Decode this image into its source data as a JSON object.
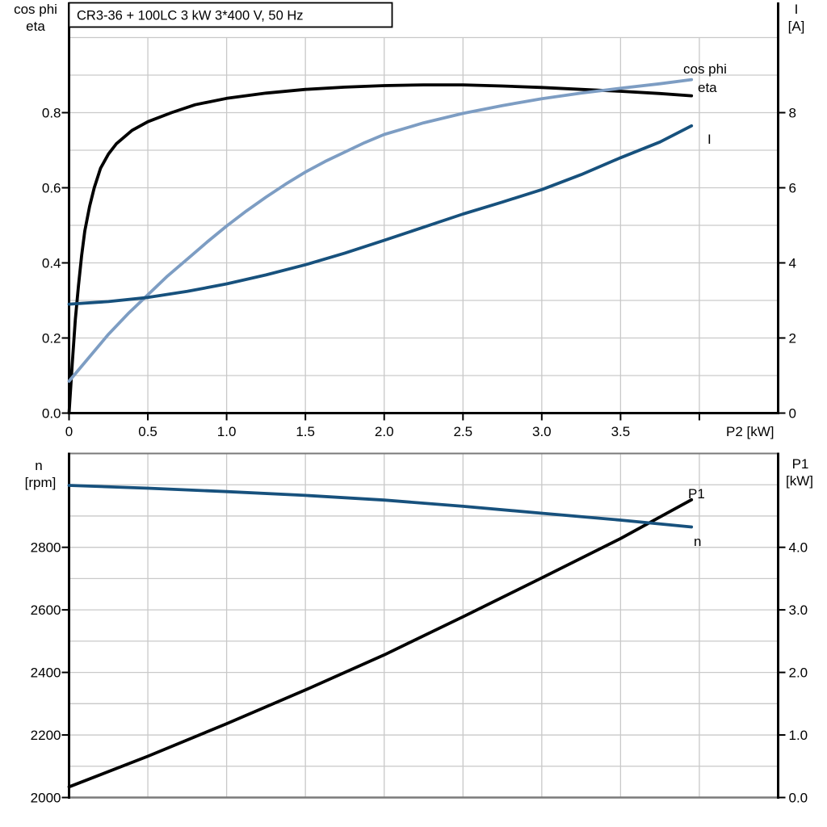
{
  "page": {
    "background": "#ffffff"
  },
  "colors": {
    "curve_black": "#000000",
    "curve_dark_blue": "#17517d",
    "curve_light_blue": "#7d9dc3",
    "gridline": "#c9c9c9",
    "plot_border_gray": "#7a7a7a",
    "axis_black": "#000000",
    "title_box_border": "#000000",
    "title_box_fill": "#ffffff"
  },
  "chart_data": [
    {
      "id": "motor-efficiency-chart",
      "type": "line",
      "title": "CR3-36 + 100LC   3 kW   3*400 V, 50 Hz",
      "x_axis": {
        "label": "P2 [kW]",
        "min": 0,
        "max": 4.5,
        "grid_step": 0.5,
        "tick_values": [
          0,
          0.5,
          1,
          1.5,
          2,
          2.5,
          3,
          3.5,
          4
        ],
        "tick_labels": [
          "0",
          "0.5",
          "1.0",
          "1.5",
          "2.0",
          "2.5",
          "3.0",
          "3.5",
          ""
        ]
      },
      "y_axis_left": {
        "title_lines": [
          "cos phi",
          "eta"
        ],
        "min": 0,
        "max": 1.0,
        "grid_step": 0.1,
        "tick_values": [
          0,
          0.2,
          0.4,
          0.6,
          0.8
        ],
        "tick_labels": [
          "0.0",
          "0.2",
          "0.4",
          "0.6",
          "0.8"
        ]
      },
      "y_axis_right": {
        "title_lines": [
          "I",
          "[A]"
        ],
        "min": 0,
        "max": 10,
        "tick_values": [
          0,
          2,
          4,
          6,
          8
        ],
        "tick_labels": [
          "0",
          "2",
          "4",
          "6",
          "8"
        ]
      },
      "legend_position": "labels-at-line-ends",
      "grid": true,
      "series": [
        {
          "name": "eta",
          "axis": "left",
          "color": "#000000",
          "points": [
            [
              0,
              0
            ],
            [
              0.02,
              0.13
            ],
            [
              0.04,
              0.25
            ],
            [
              0.06,
              0.34
            ],
            [
              0.08,
              0.42
            ],
            [
              0.1,
              0.485
            ],
            [
              0.13,
              0.55
            ],
            [
              0.16,
              0.6
            ],
            [
              0.2,
              0.652
            ],
            [
              0.25,
              0.69
            ],
            [
              0.3,
              0.717
            ],
            [
              0.4,
              0.753
            ],
            [
              0.5,
              0.776
            ],
            [
              0.65,
              0.8
            ],
            [
              0.8,
              0.821
            ],
            [
              1,
              0.838
            ],
            [
              1.25,
              0.852
            ],
            [
              1.5,
              0.862
            ],
            [
              1.75,
              0.868
            ],
            [
              2,
              0.872
            ],
            [
              2.25,
              0.874
            ],
            [
              2.5,
              0.874
            ],
            [
              2.75,
              0.871
            ],
            [
              3,
              0.867
            ],
            [
              3.25,
              0.862
            ],
            [
              3.5,
              0.857
            ],
            [
              3.75,
              0.851
            ],
            [
              3.95,
              0.845
            ]
          ]
        },
        {
          "name": "cos phi",
          "axis": "left",
          "color": "#7d9dc3",
          "points": [
            [
              0,
              0.085
            ],
            [
              0.15,
              0.16
            ],
            [
              0.25,
              0.21
            ],
            [
              0.375,
              0.265
            ],
            [
              0.5,
              0.315
            ],
            [
              0.625,
              0.365
            ],
            [
              0.75,
              0.41
            ],
            [
              0.875,
              0.455
            ],
            [
              1,
              0.498
            ],
            [
              1.125,
              0.538
            ],
            [
              1.25,
              0.575
            ],
            [
              1.375,
              0.61
            ],
            [
              1.5,
              0.642
            ],
            [
              1.625,
              0.67
            ],
            [
              1.75,
              0.695
            ],
            [
              1.875,
              0.72
            ],
            [
              2,
              0.742
            ],
            [
              2.25,
              0.773
            ],
            [
              2.5,
              0.798
            ],
            [
              2.75,
              0.819
            ],
            [
              3,
              0.837
            ],
            [
              3.25,
              0.852
            ],
            [
              3.5,
              0.865
            ],
            [
              3.75,
              0.877
            ],
            [
              3.95,
              0.888
            ]
          ]
        },
        {
          "name": "I",
          "axis": "right",
          "color": "#17517d",
          "points": [
            [
              0,
              2.9
            ],
            [
              0.25,
              2.97
            ],
            [
              0.5,
              3.08
            ],
            [
              0.75,
              3.24
            ],
            [
              1,
              3.44
            ],
            [
              1.25,
              3.68
            ],
            [
              1.5,
              3.95
            ],
            [
              1.75,
              4.26
            ],
            [
              2,
              4.6
            ],
            [
              2.25,
              4.95
            ],
            [
              2.5,
              5.3
            ],
            [
              2.75,
              5.62
            ],
            [
              3,
              5.95
            ],
            [
              3.25,
              6.35
            ],
            [
              3.5,
              6.8
            ],
            [
              3.75,
              7.22
            ],
            [
              3.95,
              7.65
            ]
          ]
        }
      ]
    },
    {
      "id": "motor-speed-power-chart",
      "type": "line",
      "title": "",
      "x_axis": {
        "label": "",
        "min": 0,
        "max": 4.5,
        "grid_step": 0.5,
        "tick_values": [],
        "tick_labels": []
      },
      "y_axis_left": {
        "title_lines": [
          "n",
          "[rpm]"
        ],
        "min": 2000,
        "max": 3100,
        "grid_step": 100,
        "tick_values": [
          2000,
          2200,
          2400,
          2600,
          2800
        ],
        "tick_labels": [
          "2000",
          "2200",
          "2400",
          "2600",
          "2800"
        ]
      },
      "y_axis_right": {
        "title_lines": [
          "P1",
          "[kW]"
        ],
        "min": 0,
        "max": 5.5,
        "grid_step": 0.5,
        "tick_values": [
          0,
          1,
          2,
          3,
          4
        ],
        "tick_labels": [
          "0.0",
          "1.0",
          "2.0",
          "3.0",
          "4.0"
        ]
      },
      "legend_position": "labels-at-line-ends",
      "grid": true,
      "series": [
        {
          "name": "P1",
          "axis": "right",
          "color": "#000000",
          "points": [
            [
              0,
              0.17
            ],
            [
              0.5,
              0.66
            ],
            [
              1,
              1.18
            ],
            [
              1.5,
              1.72
            ],
            [
              2,
              2.28
            ],
            [
              2.5,
              2.89
            ],
            [
              3,
              3.51
            ],
            [
              3.5,
              4.14
            ],
            [
              3.95,
              4.76
            ]
          ]
        },
        {
          "name": "n",
          "axis": "left",
          "color": "#17517d",
          "points": [
            [
              0,
              2998
            ],
            [
              0.5,
              2989
            ],
            [
              1,
              2978
            ],
            [
              1.5,
              2966
            ],
            [
              2,
              2951
            ],
            [
              2.5,
              2931
            ],
            [
              3,
              2909
            ],
            [
              3.5,
              2887
            ],
            [
              3.95,
              2865
            ]
          ]
        }
      ]
    }
  ]
}
